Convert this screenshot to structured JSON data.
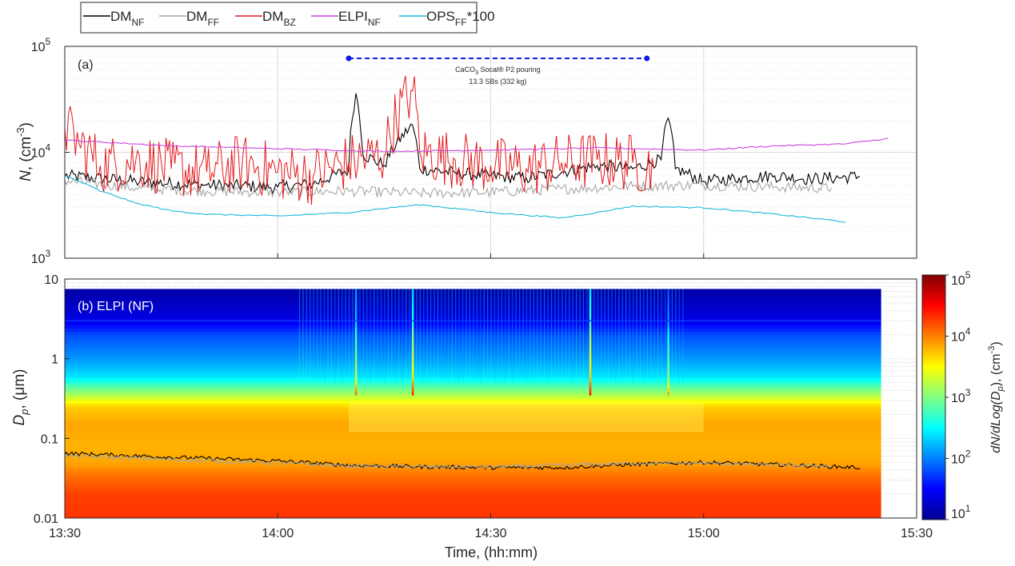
{
  "legend": {
    "items": [
      {
        "base": "DM",
        "sub": "NF",
        "suffix": "",
        "color": "#000000"
      },
      {
        "base": "DM",
        "sub": "FF",
        "suffix": "",
        "color": "#a6a6a6"
      },
      {
        "base": "DM",
        "sub": "BZ",
        "suffix": "",
        "color": "#e41a1c"
      },
      {
        "base": "ELPI",
        "sub": "NF",
        "suffix": "",
        "color": "#cc44dd"
      },
      {
        "base": "OPS",
        "sub": "FF",
        "suffix": "*100",
        "color": "#1ab8dd"
      }
    ]
  },
  "panel_a": {
    "label": "(a)",
    "ylabel_var": "N",
    "ylabel_unit": ", (cm",
    "ylabel_exp": "-3",
    "ylabel_close": ")",
    "yticks": [
      {
        "base": "10",
        "exp": "3",
        "value": 1000
      },
      {
        "base": "10",
        "exp": "4",
        "value": 10000
      },
      {
        "base": "10",
        "exp": "5",
        "value": 100000
      }
    ],
    "annotation": {
      "line1_pre": "CaCO",
      "line1_sub": "3",
      "line1_post": " Socal® P2 pouring",
      "line2": "13.3 SBs (332 kg)",
      "start": "14:10",
      "end": "14:52",
      "color": "#0a1ae8"
    }
  },
  "panel_b": {
    "label": "(b) ELPI (NF)",
    "ylabel_var": "D",
    "ylabel_sub": "p",
    "ylabel_rest": ", (μm)",
    "yticks": [
      {
        "label": "0.01",
        "value": 0.01
      },
      {
        "label": "0.1",
        "value": 0.1
      },
      {
        "label": "1",
        "value": 1
      },
      {
        "label": "10",
        "value": 10
      }
    ]
  },
  "colorbar": {
    "label_pre": "dN/dLog(D",
    "label_sub": "p",
    "label_post": "), (cm",
    "label_exp": "-3",
    "label_close": ")",
    "ticks": [
      {
        "base": "10",
        "exp": "1"
      },
      {
        "base": "10",
        "exp": "2"
      },
      {
        "base": "10",
        "exp": "3"
      },
      {
        "base": "10",
        "exp": "4"
      },
      {
        "base": "10",
        "exp": "5"
      }
    ]
  },
  "xaxis": {
    "label": "Time, (hh:mm)",
    "ticks": [
      "13:30",
      "14:00",
      "14:30",
      "15:00",
      "15:30"
    ]
  },
  "chart_data": [
    {
      "type": "line",
      "title": "(a)",
      "xlabel": "Time, (hh:mm)",
      "ylabel": "N, (cm-3)",
      "yscale": "log",
      "xlim": [
        "13:30",
        "15:30"
      ],
      "ylim": [
        1000,
        100000
      ],
      "series": [
        {
          "name": "DM_NF",
          "color": "#000000",
          "points": [
            [
              "13:30",
              6000
            ],
            [
              "13:40",
              5300
            ],
            [
              "13:50",
              4900
            ],
            [
              "14:00",
              4700
            ],
            [
              "14:05",
              5000
            ],
            [
              "14:10",
              6800
            ],
            [
              "14:11",
              36000
            ],
            [
              "14:12",
              9500
            ],
            [
              "14:15",
              7500
            ],
            [
              "14:19",
              18000
            ],
            [
              "14:20",
              7000
            ],
            [
              "14:25",
              6400
            ],
            [
              "14:30",
              6000
            ],
            [
              "14:35",
              5700
            ],
            [
              "14:40",
              6500
            ],
            [
              "14:45",
              7500
            ],
            [
              "14:50",
              7000
            ],
            [
              "14:54",
              8500
            ],
            [
              "14:55",
              21000
            ],
            [
              "14:56",
              7000
            ],
            [
              "15:00",
              5300
            ],
            [
              "15:05",
              5700
            ],
            [
              "15:10",
              6000
            ],
            [
              "15:15",
              5600
            ],
            [
              "15:22",
              5900
            ]
          ]
        },
        {
          "name": "DM_FF",
          "color": "#a6a6a6",
          "points": [
            [
              "13:30",
              5400
            ],
            [
              "13:40",
              4600
            ],
            [
              "13:50",
              4300
            ],
            [
              "14:00",
              4200
            ],
            [
              "14:10",
              4300
            ],
            [
              "14:20",
              4100
            ],
            [
              "14:30",
              4200
            ],
            [
              "14:40",
              4500
            ],
            [
              "14:50",
              4800
            ],
            [
              "15:00",
              4900
            ],
            [
              "15:10",
              4700
            ],
            [
              "15:18",
              4600
            ]
          ]
        },
        {
          "name": "DM_BZ",
          "color": "#e41a1c",
          "points": [
            [
              "13:30",
              17000
            ],
            [
              "13:32",
              12000
            ],
            [
              "13:35",
              7500
            ],
            [
              "13:40",
              8500
            ],
            [
              "13:45",
              7000
            ],
            [
              "13:50",
              6500
            ],
            [
              "13:55",
              8000
            ],
            [
              "14:00",
              6500
            ],
            [
              "14:05",
              6000
            ],
            [
              "14:10",
              8000
            ],
            [
              "14:15",
              9500
            ],
            [
              "14:19",
              38000
            ],
            [
              "14:20",
              10000
            ],
            [
              "14:25",
              8500
            ],
            [
              "14:30",
              7500
            ],
            [
              "14:35",
              7000
            ],
            [
              "14:40",
              8000
            ],
            [
              "14:45",
              8500
            ],
            [
              "14:50",
              8000
            ],
            [
              "14:53",
              7000
            ]
          ]
        },
        {
          "name": "ELPI_NF",
          "color": "#cc44dd",
          "points": [
            [
              "13:30",
              13000
            ],
            [
              "13:45",
              11500
            ],
            [
              "14:00",
              10800
            ],
            [
              "14:15",
              10200
            ],
            [
              "14:30",
              10500
            ],
            [
              "14:45",
              11000
            ],
            [
              "15:00",
              10500
            ],
            [
              "15:10",
              11500
            ],
            [
              "15:20",
              12000
            ],
            [
              "15:26",
              13500
            ]
          ]
        },
        {
          "name": "OPS_FF*100",
          "color": "#1ab8dd",
          "points": [
            [
              "13:30",
              6000
            ],
            [
              "13:35",
              4300
            ],
            [
              "13:40",
              3300
            ],
            [
              "13:45",
              2800
            ],
            [
              "13:50",
              2600
            ],
            [
              "14:00",
              2500
            ],
            [
              "14:10",
              2700
            ],
            [
              "14:20",
              3200
            ],
            [
              "14:30",
              2700
            ],
            [
              "14:40",
              2400
            ],
            [
              "14:45",
              2700
            ],
            [
              "14:50",
              3100
            ],
            [
              "15:00",
              3000
            ],
            [
              "15:10",
              2600
            ],
            [
              "15:20",
              2200
            ]
          ]
        }
      ]
    },
    {
      "type": "heatmap",
      "title": "(b) ELPI (NF)",
      "xlabel": "Time, (hh:mm)",
      "ylabel": "Dp, (μm)",
      "yscale": "log",
      "ylim": [
        0.01,
        10
      ],
      "colorbar": {
        "label": "dN/dLog(Dp), (cm-3)",
        "scale": "log",
        "range": [
          10,
          100000
        ]
      },
      "size_profile_log10": [
        {
          "dp": 0.01,
          "value": 4.3
        },
        {
          "dp": 0.02,
          "value": 4.25
        },
        {
          "dp": 0.035,
          "value": 4.05
        },
        {
          "dp": 0.05,
          "value": 3.85
        },
        {
          "dp": 0.08,
          "value": 3.8
        },
        {
          "dp": 0.15,
          "value": 3.85
        },
        {
          "dp": 0.25,
          "value": 3.7
        },
        {
          "dp": 0.4,
          "value": 3.0
        },
        {
          "dp": 0.6,
          "value": 2.4
        },
        {
          "dp": 1.0,
          "value": 2.1
        },
        {
          "dp": 2.0,
          "value": 1.8
        },
        {
          "dp": 3.0,
          "value": 1.4
        },
        {
          "dp": 7.5,
          "value": 1.1
        }
      ],
      "spikes": [
        {
          "time": "14:11",
          "log10_boost": 0.9
        },
        {
          "time": "14:19",
          "log10_boost": 1.2
        },
        {
          "time": "14:44",
          "log10_boost": 1.3
        },
        {
          "time": "14:55",
          "log10_boost": 0.7
        }
      ],
      "overlay_series": [
        {
          "name": "DM_NF mode",
          "color": "#000000",
          "points": [
            [
              "13:30",
              0.065
            ],
            [
              "13:45",
              0.058
            ],
            [
              "14:00",
              0.052
            ],
            [
              "14:10",
              0.046
            ],
            [
              "14:20",
              0.044
            ],
            [
              "14:30",
              0.043
            ],
            [
              "14:40",
              0.043
            ],
            [
              "14:50",
              0.047
            ],
            [
              "15:00",
              0.05
            ],
            [
              "15:10",
              0.047
            ],
            [
              "15:22",
              0.043
            ]
          ]
        },
        {
          "name": "DM_FF mode",
          "color": "#a6a6a6",
          "points": [
            [
              "13:30",
              0.06
            ],
            [
              "13:45",
              0.054
            ],
            [
              "14:00",
              0.049
            ],
            [
              "14:10",
              0.045
            ],
            [
              "14:20",
              0.044
            ],
            [
              "14:30",
              0.044
            ],
            [
              "14:40",
              0.046
            ],
            [
              "14:50",
              0.049
            ],
            [
              "15:00",
              0.049
            ],
            [
              "15:10",
              0.046
            ],
            [
              "15:18",
              0.045
            ]
          ]
        }
      ]
    }
  ]
}
